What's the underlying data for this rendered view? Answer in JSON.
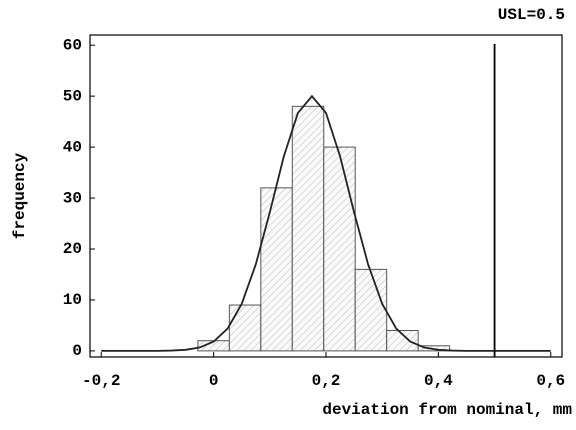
{
  "chart_data": {
    "type": "histogram",
    "xlabel": "deviation from nominal, mm",
    "ylabel": "frequency",
    "bins": [
      -0.028,
      0.028,
      0.084,
      0.14,
      0.196,
      0.252,
      0.308,
      0.364,
      0.42
    ],
    "values": [
      2,
      9,
      32,
      48,
      40,
      16,
      4,
      1
    ],
    "color": "#555555",
    "curve": {
      "color": "#222222",
      "x": [
        -0.2,
        -0.1,
        -0.075,
        -0.05,
        -0.025,
        0,
        0.025,
        0.05,
        0.075,
        0.1,
        0.125,
        0.15,
        0.175,
        0.2,
        0.225,
        0.25,
        0.275,
        0.3,
        0.325,
        0.35,
        0.375,
        0.4,
        0.425,
        0.45,
        0.5,
        0.6
      ],
      "y": [
        0,
        0,
        0.06,
        0.21,
        0.66,
        1.82,
        4.39,
        9.23,
        16.96,
        27.2,
        38.2,
        46.7,
        50,
        46.7,
        38.2,
        27.2,
        16.96,
        9.23,
        4.39,
        1.82,
        0.66,
        0.21,
        0.06,
        0,
        0,
        0
      ]
    },
    "limit_line": {
      "text": "USL=0.5",
      "x": 0.5
    },
    "xlim": [
      -0.22,
      0.62
    ],
    "ylim": [
      -1.2,
      62
    ],
    "xticks": [
      {
        "value": -0.2,
        "label": "-0,2"
      },
      0,
      {
        "value": 0.2,
        "label": "0,2"
      },
      {
        "value": 0.4,
        "label": "0,4"
      },
      {
        "value": 0.6,
        "label": "0,6"
      }
    ],
    "yticks": [
      0,
      10,
      20,
      30,
      40,
      50,
      60
    ]
  }
}
